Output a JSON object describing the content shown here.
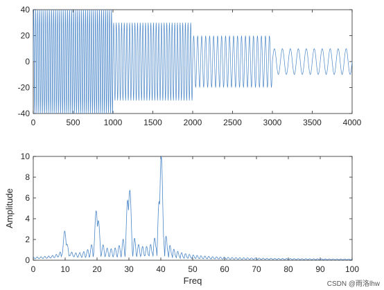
{
  "chart_data": [
    {
      "type": "line",
      "title": "",
      "xlabel": "",
      "ylabel": "",
      "xlim": [
        0,
        4000
      ],
      "ylim": [
        -40,
        40
      ],
      "xticks": [
        0,
        500,
        1000,
        1500,
        2000,
        2500,
        3000,
        3500,
        4000
      ],
      "yticks": [
        -40,
        -20,
        0,
        20,
        40
      ],
      "grid": false,
      "series": [
        {
          "color": "#4a86c8",
          "segments": [
            {
              "x_start": 0,
              "x_end": 1000,
              "amplitude": 40,
              "cycles": 40
            },
            {
              "x_start": 1000,
              "x_end": 2000,
              "amplitude": 30,
              "cycles": 30
            },
            {
              "x_start": 2000,
              "x_end": 3000,
              "amplitude": 20,
              "cycles": 20
            },
            {
              "x_start": 3000,
              "x_end": 4000,
              "amplitude": 10,
              "cycles": 10
            }
          ]
        }
      ]
    },
    {
      "type": "line",
      "title": "",
      "xlabel": "Freq",
      "ylabel": "Amplitude",
      "xlim": [
        0,
        100
      ],
      "ylim": [
        0,
        10
      ],
      "xticks": [
        0,
        10,
        20,
        30,
        40,
        50,
        60,
        70,
        80,
        90,
        100
      ],
      "yticks": [
        0,
        2,
        4,
        6,
        8,
        10
      ],
      "grid": false,
      "series": [
        {
          "color": "#4a86c8",
          "peaks": [
            {
              "freq": 10,
              "amplitude": 2.5
            },
            {
              "freq": 20,
              "amplitude": 5.0
            },
            {
              "freq": 30,
              "amplitude": 7.5
            },
            {
              "freq": 40,
              "amplitude": 10.0
            }
          ]
        }
      ]
    }
  ],
  "watermark": "CSDN @雨洛lhw"
}
